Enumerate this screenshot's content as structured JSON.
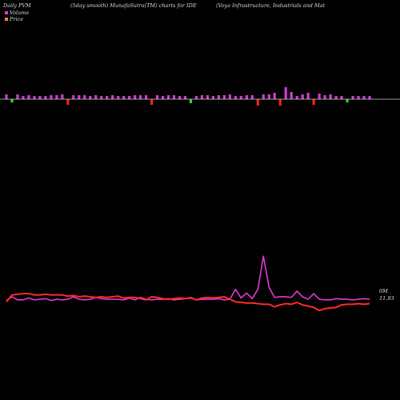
{
  "header": {
    "left": "Daily PVM",
    "center": "(5day smooth) MunafaSutra(TM) charts for IDE",
    "right": "(Voya  Infrastructure,  Industrials and Mat"
  },
  "legend": {
    "volume_label": "Volume",
    "price_label": "Price",
    "volume_color": "#e23bd1",
    "price_color": "#ff7a4a"
  },
  "labels": {
    "volume_end": "0M",
    "price_end": "11.93"
  },
  "chart_data": [
    {
      "type": "bar",
      "x": [
        1,
        2,
        3,
        4,
        5,
        6,
        7,
        8,
        9,
        10,
        11,
        12,
        13,
        14,
        15,
        16,
        17,
        18,
        19,
        20,
        21,
        22,
        23,
        24,
        25,
        26,
        27,
        28,
        29,
        30,
        31,
        32,
        33,
        34,
        35,
        36,
        37,
        38,
        39,
        40,
        41,
        42,
        43,
        44,
        45,
        46,
        47,
        48,
        49,
        50,
        51,
        52,
        53,
        54,
        55,
        56,
        57,
        58,
        59,
        60,
        61,
        62,
        63,
        64,
        65,
        66
      ],
      "series": [
        {
          "values": [
            6,
            -4,
            6,
            4,
            5,
            4,
            4,
            4,
            5,
            5,
            6,
            -7,
            5,
            5,
            5,
            4,
            5,
            4,
            4,
            5,
            4,
            4,
            4,
            5,
            5,
            5,
            -7,
            5,
            4,
            5,
            5,
            4,
            4,
            -5,
            4,
            5,
            5,
            4,
            5,
            5,
            6,
            4,
            4,
            5,
            5,
            -8,
            6,
            6,
            8,
            -8,
            15,
            9,
            4,
            6,
            8,
            -7,
            7,
            5,
            6,
            4,
            4,
            -4,
            4,
            4,
            4,
            4
          ],
          "colors": [
            "m",
            "g",
            "m",
            "m",
            "m",
            "m",
            "m",
            "m",
            "m",
            "m",
            "m",
            "r",
            "m",
            "m",
            "m",
            "m",
            "m",
            "m",
            "m",
            "m",
            "m",
            "m",
            "m",
            "m",
            "m",
            "m",
            "r",
            "m",
            "m",
            "m",
            "m",
            "m",
            "m",
            "g",
            "m",
            "m",
            "m",
            "m",
            "m",
            "m",
            "m",
            "m",
            "m",
            "m",
            "m",
            "r",
            "m",
            "m",
            "m",
            "r",
            "m",
            "m",
            "m",
            "m",
            "m",
            "r",
            "m",
            "m",
            "m",
            "m",
            "m",
            "g",
            "m",
            "m",
            "m",
            "m"
          ]
        }
      ]
    },
    {
      "type": "line",
      "x": [
        1,
        2,
        3,
        4,
        5,
        6,
        7,
        8,
        9,
        10,
        11,
        12,
        13,
        14,
        15,
        16,
        17,
        18,
        19,
        20,
        21,
        22,
        23,
        24,
        25,
        26,
        27,
        28,
        29,
        30,
        31,
        32,
        33,
        34,
        35,
        36,
        37,
        38,
        39,
        40,
        41,
        42,
        43,
        44,
        45,
        46,
        47,
        48,
        49,
        50,
        51,
        52,
        53,
        54,
        55,
        56,
        57,
        58,
        59,
        60,
        61,
        62,
        63,
        64,
        65,
        66
      ],
      "series": [
        {
          "name": "Volume",
          "color": "#e23bd1",
          "values": [
            12,
            18,
            13,
            13,
            16,
            13,
            14,
            15,
            12,
            14,
            13,
            14,
            18,
            14,
            13,
            14,
            17,
            15,
            14,
            14,
            14,
            13,
            16,
            13,
            17,
            14,
            13,
            14,
            14,
            15,
            13,
            14,
            15,
            17,
            13,
            14,
            14,
            14,
            15,
            13,
            14,
            30,
            16,
            24,
            15,
            30,
            83,
            33,
            17,
            18,
            18,
            17,
            27,
            18,
            14,
            23,
            14,
            13,
            13,
            15,
            14,
            14,
            13,
            14,
            15,
            14
          ]
        },
        {
          "name": "Price",
          "color": "#ff2a2a",
          "values": [
            10,
            21,
            22,
            23,
            23,
            21,
            21,
            22,
            21,
            21,
            21,
            19,
            20,
            18,
            19,
            18,
            17,
            18,
            17,
            18,
            19,
            16,
            17,
            17,
            15,
            13,
            18,
            17,
            15,
            14,
            15,
            16,
            15,
            16,
            13,
            16,
            17,
            16,
            17,
            18,
            14,
            10,
            9,
            8,
            8,
            7,
            6,
            6,
            2,
            5,
            7,
            6,
            9,
            5,
            3,
            1,
            -4,
            -1,
            0,
            1,
            5,
            6,
            6,
            7,
            6,
            7
          ]
        }
      ]
    }
  ]
}
